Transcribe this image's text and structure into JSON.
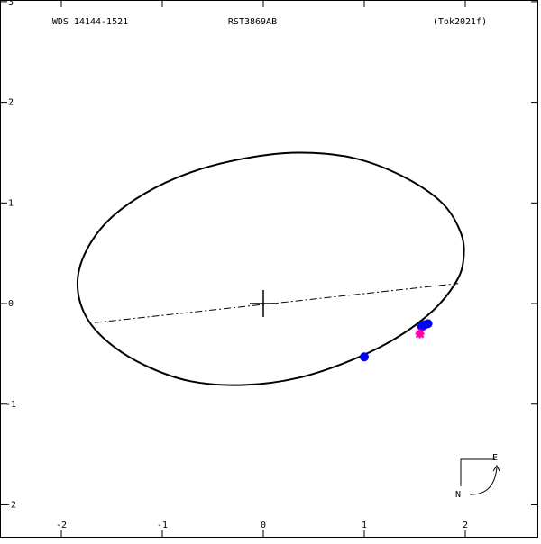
{
  "chart_data": {
    "type": "orbit",
    "title": "WDS 14144-1521",
    "subtitle": "RST3869AB",
    "reference": "(Tok2021f)",
    "compass": {
      "east": "E",
      "north": "N"
    },
    "xlim": [
      -2.607,
      2.723
    ],
    "ylim": [
      -2.327,
      3.017
    ],
    "xticks": [
      -2,
      -1,
      0,
      1,
      2
    ],
    "yticks": [
      -2,
      -1,
      0,
      1,
      2,
      3
    ],
    "series": [
      {
        "type": "orbit",
        "color": "#000000",
        "x": [
          -1.84,
          -1.76,
          -1.54,
          -1.18,
          -0.73,
          -0.2,
          0.34,
          0.88,
          1.37,
          1.77,
          1.96,
          1.98,
          1.9,
          1.68,
          1.32,
          0.88,
          0.34,
          -0.2,
          -0.73,
          -1.18,
          -1.54,
          -1.76
        ],
        "values": [
          0.2,
          0.51,
          0.82,
          1.09,
          1.3,
          1.44,
          1.5,
          1.45,
          1.27,
          1.0,
          0.69,
          0.42,
          0.2,
          -0.07,
          -0.34,
          -0.56,
          -0.74,
          -0.81,
          -0.77,
          -0.61,
          -0.38,
          -0.12
        ]
      },
      {
        "type": "nodes",
        "color": "#000000",
        "x": [
          -1.67,
          1.93
        ],
        "values": [
          -0.19,
          0.2
        ]
      },
      {
        "type": "dot",
        "color": "#0000ff",
        "x": [
          1.0,
          1.57,
          1.6,
          1.63
        ],
        "values": [
          -0.53,
          -0.23,
          -0.21,
          -0.2
        ]
      },
      {
        "type": "star",
        "color": "#ff00aa",
        "x": [
          1.55
        ],
        "values": [
          -0.3
        ]
      }
    ]
  }
}
